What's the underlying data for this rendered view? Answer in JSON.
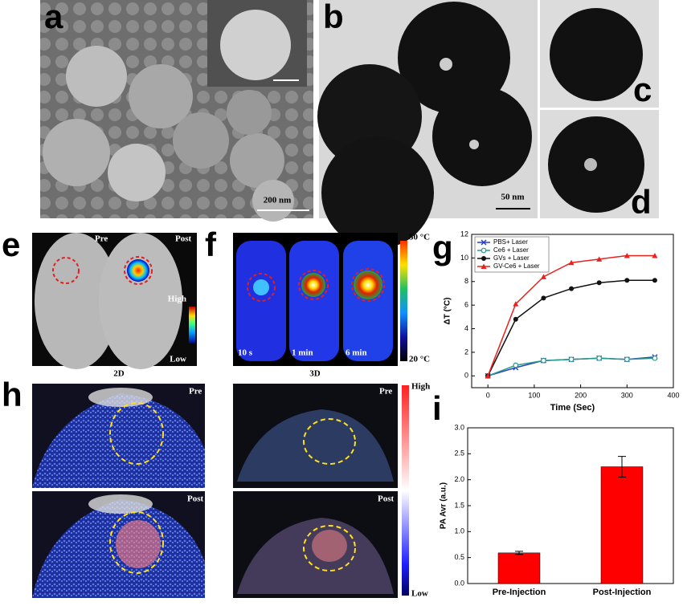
{
  "labels": [
    "a",
    "b",
    "c",
    "d",
    "e",
    "f",
    "g",
    "h",
    "i"
  ],
  "scale_bars": [
    "200 nm",
    "50 nm"
  ],
  "panel_e": {
    "pre": "Pre",
    "post": "Post",
    "high": "High",
    "low": "Low"
  },
  "panel_f": {
    "max": "50 °C",
    "min": "20 °C",
    "times": [
      "10 s",
      "1 min",
      "6 min"
    ]
  },
  "panel_h": {
    "titles": [
      "2D",
      "3D"
    ],
    "pre": "Pre",
    "post": "Post",
    "high": "High",
    "low": "Low"
  },
  "chart_data": [
    {
      "type": "line",
      "x_label": "Time (Sec)",
      "y_label": "ΔT (°C)",
      "x": [
        0,
        60,
        120,
        180,
        240,
        300,
        360
      ],
      "xlim": [
        -35,
        400
      ],
      "xticks": [
        0,
        100,
        200,
        300,
        400
      ],
      "ylim": [
        -1,
        12
      ],
      "yticks": [
        0,
        2,
        4,
        6,
        8,
        10,
        12
      ],
      "legend": "upper-left",
      "series": [
        {
          "name": "PBS+ Laser",
          "color": "#2b3fc4",
          "marker": "x",
          "values": [
            0,
            0.7,
            1.3,
            1.4,
            1.5,
            1.4,
            1.6
          ]
        },
        {
          "name": "Ce6 + Laser",
          "color": "#2a9a8a",
          "marker": "circle-open",
          "values": [
            0,
            0.9,
            1.3,
            1.4,
            1.5,
            1.4,
            1.5
          ]
        },
        {
          "name": "GVs + Laser",
          "color": "#111111",
          "marker": "circle",
          "values": [
            0,
            4.8,
            6.6,
            7.4,
            7.9,
            8.1,
            8.1
          ]
        },
        {
          "name": "GV-Ce6 + Laser",
          "color": "#e8231f",
          "marker": "triangle",
          "values": [
            0,
            6.1,
            8.4,
            9.6,
            9.9,
            10.2,
            10.2
          ]
        }
      ]
    },
    {
      "type": "bar",
      "y_label": "PA Avr (a.u.)",
      "color": "#ff0000",
      "categories": [
        "Pre-Injection",
        "Post-Injection"
      ],
      "values": [
        0.59,
        2.25
      ],
      "errors": [
        0.03,
        0.2
      ],
      "ylim": [
        0,
        3
      ],
      "yticks": [
        {
          "value": 0,
          "label": "0.0"
        },
        0.5,
        {
          "value": 1,
          "label": "1.0"
        },
        1.5,
        {
          "value": 2,
          "label": "2.0"
        },
        2.5,
        {
          "value": 3,
          "label": "3.0"
        }
      ]
    }
  ]
}
